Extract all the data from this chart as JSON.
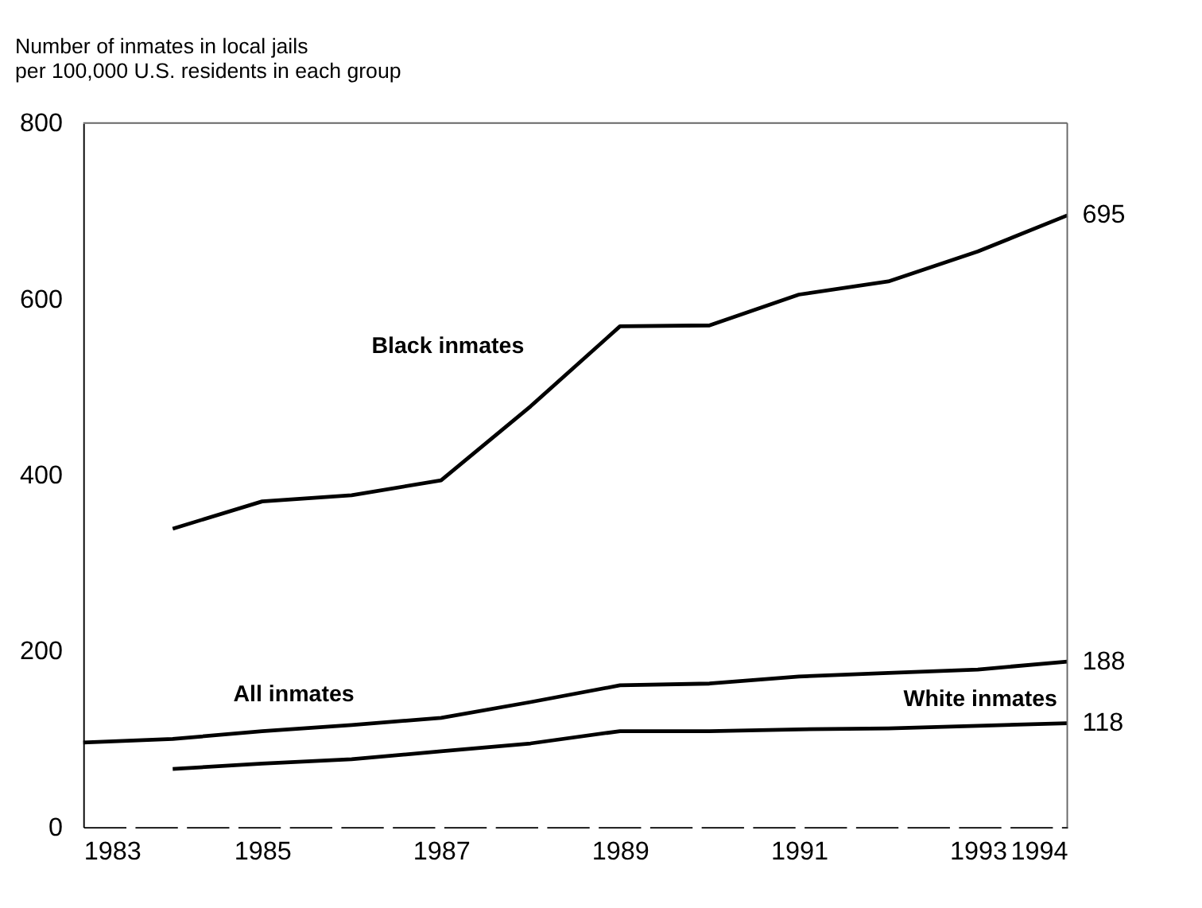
{
  "chart_data": {
    "type": "line",
    "ylabel": "Number of inmates in local jails\nper 100,000 U.S. residents in each group",
    "x": [
      1983,
      1984,
      1985,
      1986,
      1987,
      1988,
      1989,
      1990,
      1991,
      1992,
      1993,
      1994
    ],
    "series": [
      {
        "name": "Black inmates",
        "color": "#000000",
        "values": [
          null,
          339,
          370,
          377,
          394,
          478,
          569,
          570,
          605,
          620,
          654,
          695
        ],
        "value_labels": [
          null,
          null,
          null,
          null,
          null,
          null,
          null,
          null,
          null,
          null,
          null,
          "695"
        ]
      },
      {
        "name": "All inmates",
        "color": "#000000",
        "values": [
          96,
          100,
          109,
          116,
          124,
          142,
          161,
          163,
          171,
          175,
          179,
          188
        ],
        "value_labels": [
          null,
          null,
          null,
          null,
          null,
          null,
          null,
          null,
          null,
          null,
          null,
          "188"
        ]
      },
      {
        "name": "White inmates",
        "color": "#000000",
        "values": [
          null,
          66,
          72,
          77,
          86,
          95,
          109,
          109,
          111,
          112,
          115,
          118
        ],
        "value_labels": [
          null,
          null,
          null,
          null,
          null,
          null,
          null,
          null,
          null,
          null,
          null,
          "118"
        ]
      }
    ],
    "xlim": [
      1983,
      1994
    ],
    "xticks": [
      1983,
      1985,
      1987,
      1989,
      1991,
      1993,
      1994
    ],
    "ylim": [
      0,
      800
    ],
    "yticks": [
      0,
      200,
      400,
      600,
      800
    ],
    "grid": false,
    "legend": false,
    "marker": "none",
    "line_style": "solid"
  }
}
